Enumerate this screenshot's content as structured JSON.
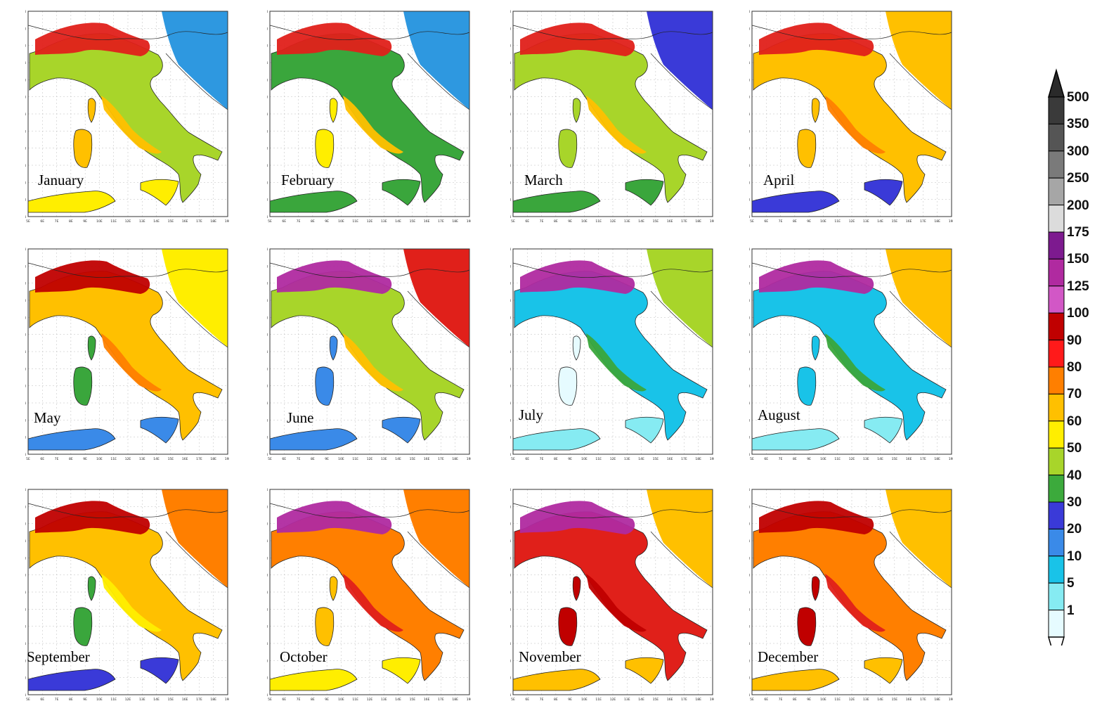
{
  "months": [
    "January",
    "February",
    "March",
    "April",
    "May",
    "June",
    "July",
    "August",
    "September",
    "October",
    "November",
    "December"
  ],
  "lat_ticks": [
    "48N",
    "47N",
    "46N",
    "45N",
    "44N",
    "43N",
    "42N",
    "41N",
    "40N",
    "39N",
    "38N",
    "37N",
    "36N"
  ],
  "lon_ticks": [
    "5E",
    "6E",
    "7E",
    "8E",
    "9E",
    "10E",
    "11E",
    "12E",
    "13E",
    "14E",
    "15E",
    "16E",
    "17E",
    "18E",
    "19E"
  ],
  "legend": {
    "levels": [
      "500",
      "350",
      "300",
      "250",
      "200",
      "175",
      "150",
      "125",
      "100",
      "90",
      "80",
      "70",
      "60",
      "50",
      "40",
      "30",
      "20",
      "10",
      "5",
      "1"
    ],
    "colors": [
      "#3a3a3a",
      "#555555",
      "#7a7a7a",
      "#a6a6a6",
      "#dcdcdc",
      "#7d1a8f",
      "#b02aa0",
      "#d257c6",
      "#c00000",
      "#ff1a1a",
      "#ff7f00",
      "#ffc000",
      "#ffee00",
      "#a8d52a",
      "#3caa3c",
      "#3a3ad8",
      "#3a8ae8",
      "#19c3e8",
      "#86ebf2",
      "#e6fbff"
    ],
    "top_color": "#2a2a2a",
    "bottom_color": "#ffffff"
  },
  "palette": {
    "sea": "#ffffff",
    "outline": "#222222",
    "grid": "#bdbdbd"
  },
  "panels": [
    {
      "month": "January",
      "outer": "#2e98e0",
      "land": "#a8d52a",
      "mid": "#ffc000",
      "alps": "#e0201a",
      "south": "#ffee00",
      "islands": "#ffc000"
    },
    {
      "month": "February",
      "outer": "#2e98e0",
      "land": "#3aa63c",
      "mid": "#ffc000",
      "alps": "#e0201a",
      "south": "#3aa63c",
      "islands": "#ffee00"
    },
    {
      "month": "March",
      "outer": "#3a3ad8",
      "land": "#a8d52a",
      "mid": "#ffc000",
      "alps": "#e0201a",
      "south": "#3aa63c",
      "islands": "#a8d52a"
    },
    {
      "month": "April",
      "outer": "#ffc000",
      "land": "#ffc000",
      "mid": "#ff7f00",
      "alps": "#e0201a",
      "south": "#3a3ad8",
      "islands": "#ffc000"
    },
    {
      "month": "May",
      "outer": "#ffee00",
      "land": "#ffc000",
      "mid": "#ff7f00",
      "alps": "#c00000",
      "south": "#3a8ae8",
      "islands": "#3aa63c"
    },
    {
      "month": "June",
      "outer": "#e0201a",
      "land": "#a8d52a",
      "mid": "#ffc000",
      "alps": "#b02aa0",
      "south": "#3a8ae8",
      "islands": "#3a8ae8"
    },
    {
      "month": "July",
      "outer": "#a8d52a",
      "land": "#19c3e8",
      "mid": "#3aa63c",
      "alps": "#b02aa0",
      "south": "#86ebf2",
      "islands": "#e6fbff"
    },
    {
      "month": "August",
      "outer": "#ffc000",
      "land": "#19c3e8",
      "mid": "#3aa63c",
      "alps": "#b02aa0",
      "south": "#86ebf2",
      "islands": "#19c3e8"
    },
    {
      "month": "September",
      "outer": "#ff7f00",
      "land": "#ffc000",
      "mid": "#ffee00",
      "alps": "#c00000",
      "south": "#3a3ad8",
      "islands": "#3aa63c"
    },
    {
      "month": "October",
      "outer": "#ff7f00",
      "land": "#ff7f00",
      "mid": "#e0201a",
      "alps": "#b02aa0",
      "south": "#ffee00",
      "islands": "#ffc000"
    },
    {
      "month": "November",
      "outer": "#ffc000",
      "land": "#e0201a",
      "mid": "#c00000",
      "alps": "#b02aa0",
      "south": "#ffc000",
      "islands": "#c00000"
    },
    {
      "month": "December",
      "outer": "#ffc000",
      "land": "#ff7f00",
      "mid": "#e0201a",
      "alps": "#c00000",
      "south": "#ffc000",
      "islands": "#c00000"
    }
  ]
}
